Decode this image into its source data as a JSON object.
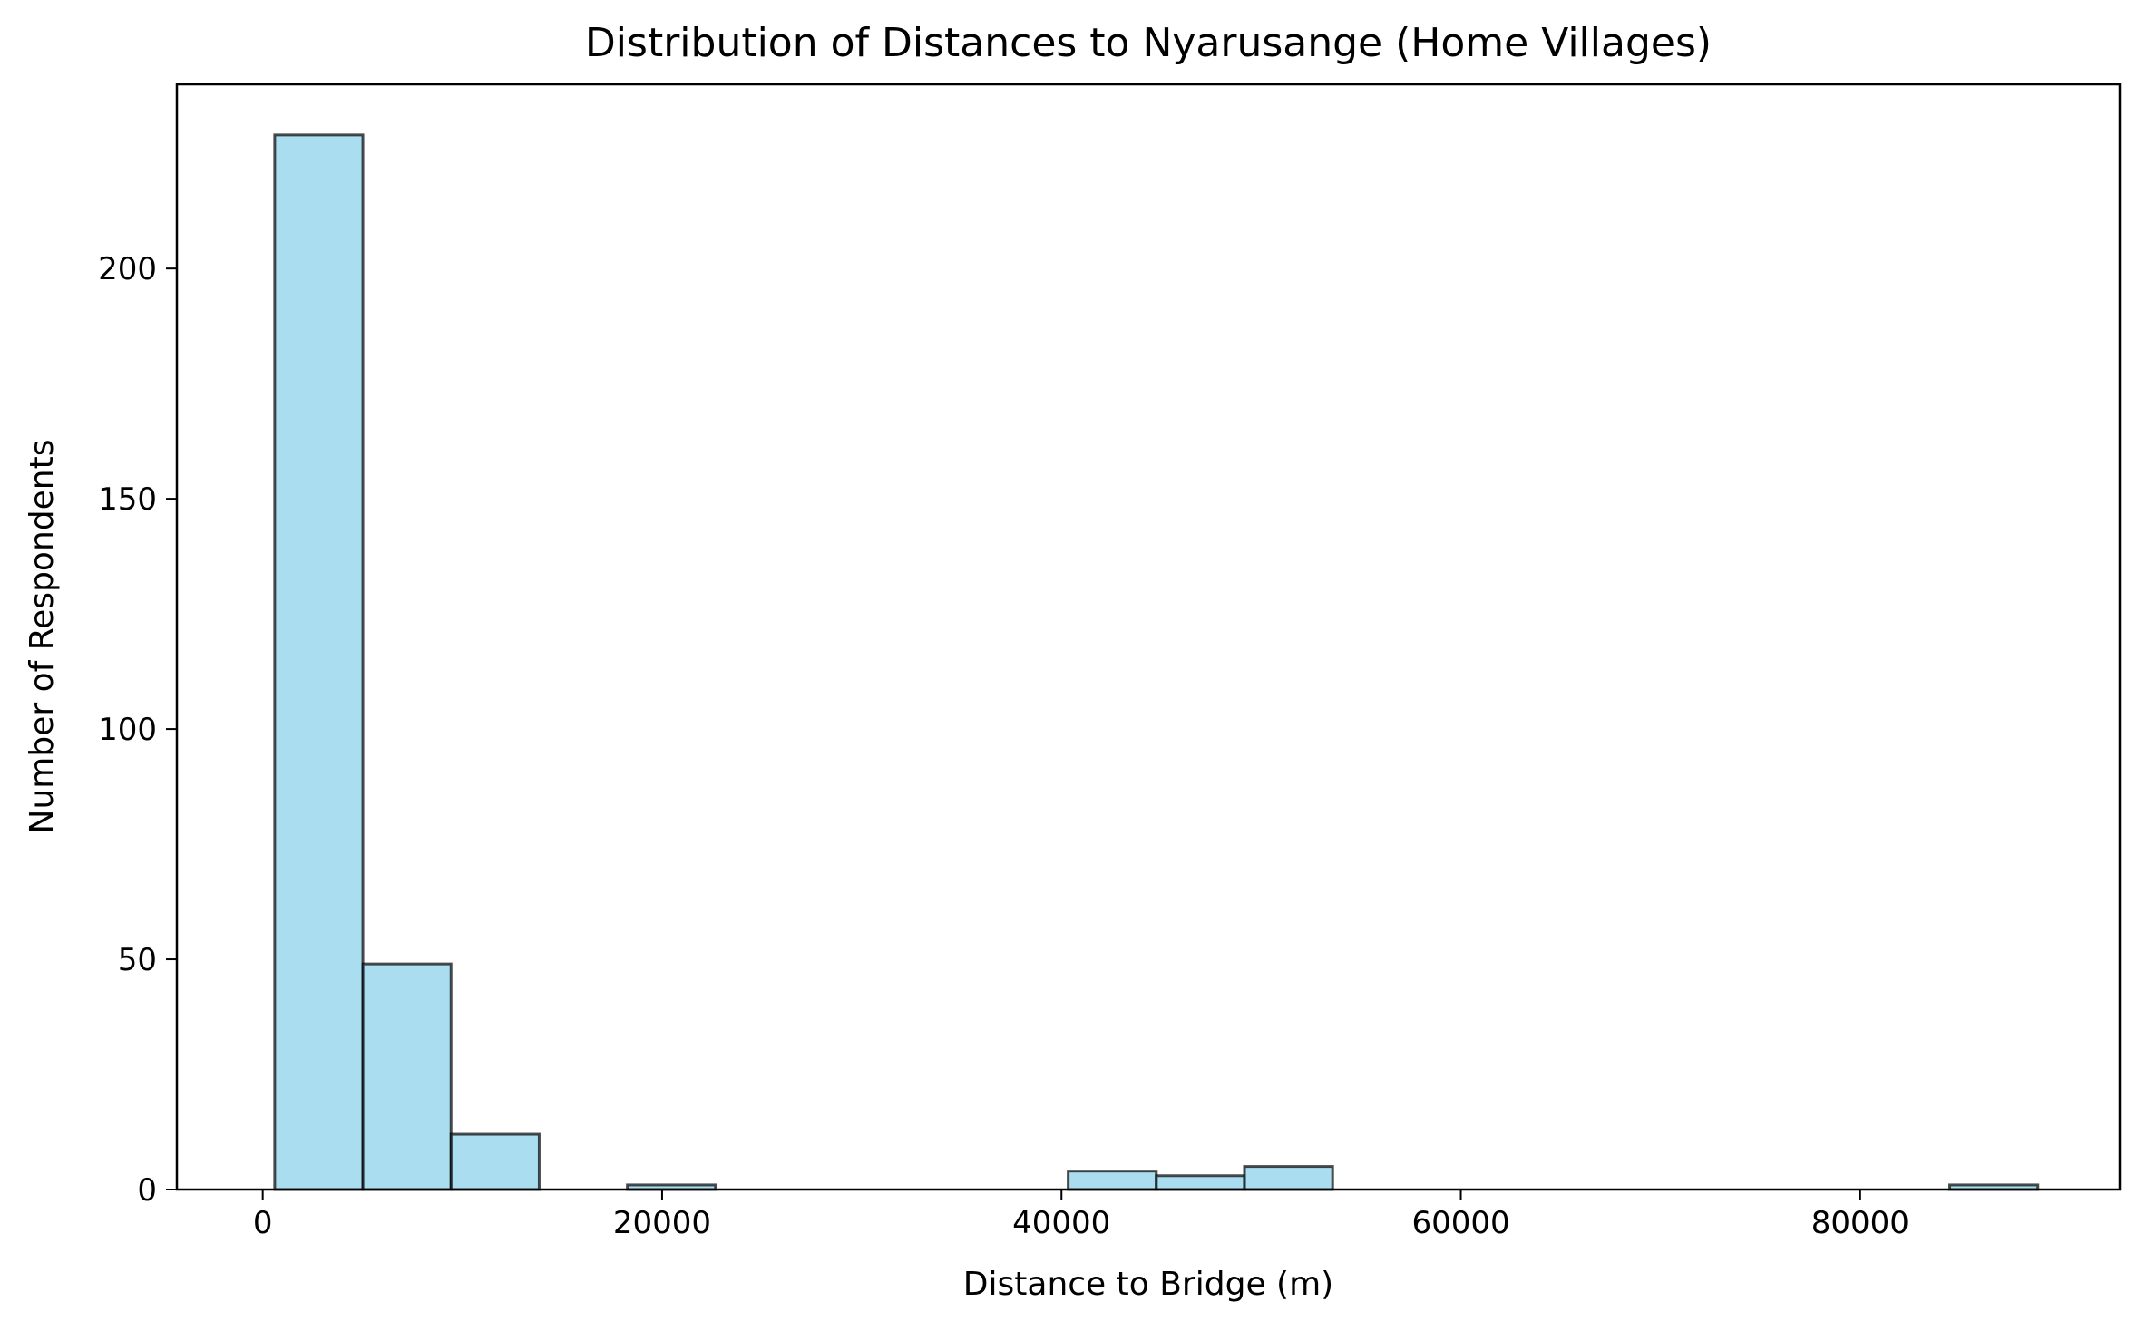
{
  "chart_data": {
    "type": "bar",
    "title": "Distribution of Distances to Nyarusange (Home Villages)",
    "xlabel": "Distance to Bridge (m)",
    "ylabel": "Number of Respondents",
    "xlim": [
      -4300,
      93000
    ],
    "ylim": [
      0,
      240
    ],
    "x_ticks": [
      0,
      20000,
      40000,
      60000,
      80000
    ],
    "x_tick_labels": [
      "0",
      "20000",
      "40000",
      "60000",
      "80000"
    ],
    "y_ticks": [
      0,
      50,
      100,
      150,
      200
    ],
    "y_tick_labels": [
      "0",
      "50",
      "100",
      "150",
      "200"
    ],
    "bin_edges": [
      600,
      5015,
      9430,
      13845,
      18260,
      22675,
      27090,
      31505,
      35920,
      40335,
      44750,
      49165,
      53580,
      57995,
      62410,
      66825,
      71240,
      75655,
      80070,
      84485,
      88900
    ],
    "counts": [
      229,
      49,
      12,
      0,
      1,
      0,
      0,
      0,
      0,
      4,
      3,
      5,
      0,
      0,
      0,
      0,
      0,
      0,
      0,
      1
    ],
    "grid": false,
    "legend": false,
    "colors": {
      "bar_fill": "#87ceeb",
      "bar_edge": "#000000",
      "axes": "#000000"
    }
  }
}
